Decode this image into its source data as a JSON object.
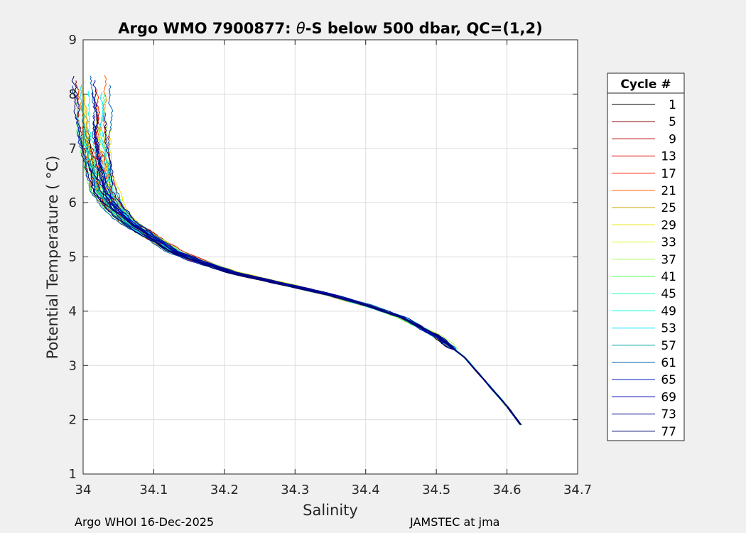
{
  "chart_data": {
    "type": "line",
    "title_prefix": "Argo WMO 7900877: ",
    "title_symbol": "θ",
    "title_suffix": "-S below 500 dbar,  QC=(1,2)",
    "xlabel": "Salinity",
    "ylabel": "Potential Temperature ( °C)",
    "xlim": [
      34.0,
      34.7
    ],
    "ylim": [
      1,
      9
    ],
    "xticks": [
      34.0,
      34.1,
      34.2,
      34.3,
      34.4,
      34.5,
      34.6,
      34.7
    ],
    "xtick_labels": [
      "34",
      "34.1",
      "34.2",
      "34.3",
      "34.4",
      "34.5",
      "34.6",
      "34.7"
    ],
    "yticks": [
      1,
      2,
      3,
      4,
      5,
      6,
      7,
      8,
      9
    ],
    "ytick_labels": [
      "1",
      "2",
      "3",
      "4",
      "5",
      "6",
      "7",
      "8",
      "9"
    ],
    "grid": true,
    "colormap": "jet",
    "legend": {
      "title": "Cycle #",
      "placement": "outside-right",
      "entries": [
        {
          "label": "1",
          "color": "#000000"
        },
        {
          "label": "5",
          "color": "#800000"
        },
        {
          "label": "9",
          "color": "#b30000"
        },
        {
          "label": "13",
          "color": "#e00000"
        },
        {
          "label": "17",
          "color": "#ff2000"
        },
        {
          "label": "21",
          "color": "#ff6000"
        },
        {
          "label": "25",
          "color": "#c8a000"
        },
        {
          "label": "29",
          "color": "#e6e600"
        },
        {
          "label": "33",
          "color": "#d4ff2a"
        },
        {
          "label": "37",
          "color": "#aaff55"
        },
        {
          "label": "41",
          "color": "#55ff55"
        },
        {
          "label": "45",
          "color": "#2affc0"
        },
        {
          "label": "49",
          "color": "#00ffe0"
        },
        {
          "label": "53",
          "color": "#00e0ff"
        },
        {
          "label": "57",
          "color": "#00a0a0"
        },
        {
          "label": "61",
          "color": "#0060b0"
        },
        {
          "label": "65",
          "color": "#0020c0"
        },
        {
          "label": "69",
          "color": "#0000b0"
        },
        {
          "label": "73",
          "color": "#000090"
        },
        {
          "label": "77",
          "color": "#000070"
        }
      ]
    },
    "mean_profile": {
      "salinity": [
        34.015,
        34.02,
        34.025,
        34.03,
        34.045,
        34.07,
        34.1,
        34.13,
        34.17,
        34.21,
        34.25,
        34.3,
        34.35,
        34.4,
        34.45,
        34.5,
        34.54,
        34.57,
        34.6,
        34.62
      ],
      "theta": [
        7.2,
        6.8,
        6.5,
        6.2,
        5.9,
        5.6,
        5.35,
        5.1,
        4.9,
        4.72,
        4.6,
        4.45,
        4.3,
        4.12,
        3.9,
        3.55,
        3.15,
        2.7,
        2.25,
        1.9
      ]
    }
  },
  "footer": {
    "left": "Argo WHOI 16-Dec-2025",
    "right": "JAMSTEC at jma"
  }
}
